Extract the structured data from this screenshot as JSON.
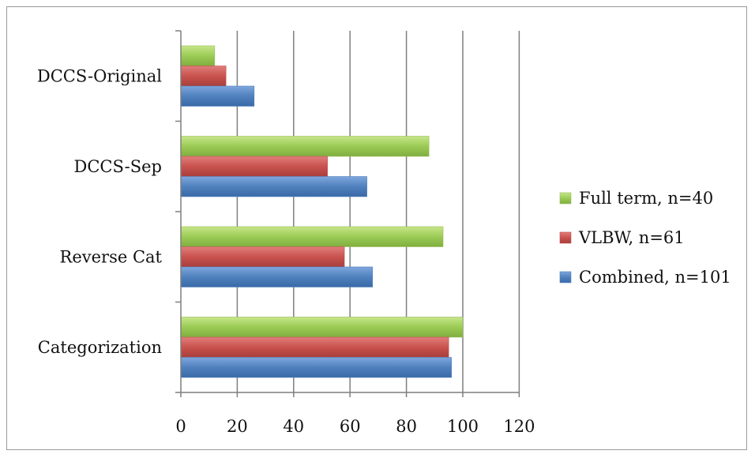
{
  "chart_data": {
    "type": "bar",
    "orientation": "horizontal",
    "categories": [
      "Categorization",
      "Reverse Cat",
      "DCCS-Sep",
      "DCCS-Original"
    ],
    "series": [
      {
        "name": "Combined, n=101",
        "color": "#4f81bd",
        "values": [
          96,
          68,
          66,
          26
        ]
      },
      {
        "name": "VLBW, n=61",
        "color": "#c0504d",
        "values": [
          95,
          58,
          52,
          16
        ]
      },
      {
        "name": "Full term, n=40",
        "color": "#9bbb59",
        "values": [
          100,
          93,
          88,
          12
        ]
      }
    ],
    "xlim": [
      0,
      120
    ],
    "xticks": [
      "0",
      "20",
      "40",
      "60",
      "80",
      "100",
      "120"
    ],
    "grid": true,
    "legend_position": "right",
    "title": "",
    "xlabel": "",
    "ylabel": ""
  }
}
